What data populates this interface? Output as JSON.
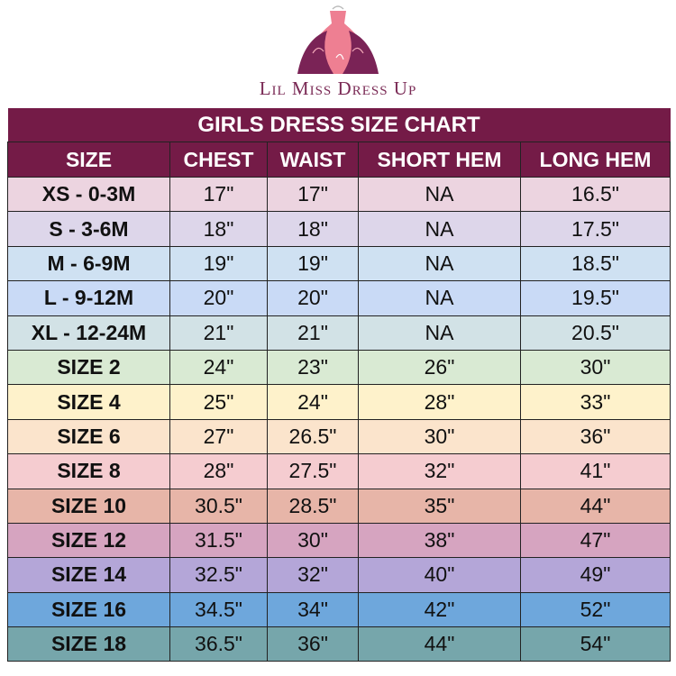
{
  "brand": {
    "name": "Lil Miss Dress Up",
    "colors": {
      "primary": "#741b47",
      "pink": "#ee7f92"
    }
  },
  "table": {
    "title": "GIRLS DRESS SIZE CHART",
    "columns": [
      "SIZE",
      "CHEST",
      "WAIST",
      "SHORT HEM",
      "LONG HEM"
    ],
    "rows": [
      {
        "cells": [
          "XS - 0-3M",
          "17\"",
          "17\"",
          "NA",
          "16.5\""
        ],
        "color": "#ecd4e0"
      },
      {
        "cells": [
          "S - 3-6M",
          "18\"",
          "18\"",
          "NA",
          "17.5\""
        ],
        "color": "#ddd6ea"
      },
      {
        "cells": [
          "M - 6-9M",
          "19\"",
          "19\"",
          "NA",
          "18.5\""
        ],
        "color": "#cfe1f2"
      },
      {
        "cells": [
          "L - 9-12M",
          "20\"",
          "20\"",
          "NA",
          "19.5\""
        ],
        "color": "#c9daf6"
      },
      {
        "cells": [
          "XL - 12-24M",
          "21\"",
          "21\"",
          "NA",
          "20.5\""
        ],
        "color": "#d2e2e6"
      },
      {
        "cells": [
          "SIZE 2",
          "24\"",
          "23\"",
          "26\"",
          "30\""
        ],
        "color": "#d9ead3"
      },
      {
        "cells": [
          "SIZE 4",
          "25\"",
          "24\"",
          "28\"",
          "33\""
        ],
        "color": "#fef2cb"
      },
      {
        "cells": [
          "SIZE 6",
          "27\"",
          "26.5\"",
          "30\"",
          "36\""
        ],
        "color": "#fbe4cc"
      },
      {
        "cells": [
          "SIZE 8",
          "28\"",
          "27.5\"",
          "32\"",
          "41\""
        ],
        "color": "#f5ccd0"
      },
      {
        "cells": [
          "SIZE 10",
          "30.5\"",
          "28.5\"",
          "35\"",
          "44\""
        ],
        "color": "#e7b5a8"
      },
      {
        "cells": [
          "SIZE 12",
          "31.5\"",
          "30\"",
          "38\"",
          "47\""
        ],
        "color": "#d6a4c0"
      },
      {
        "cells": [
          "SIZE 14",
          "32.5\"",
          "32\"",
          "40\"",
          "49\""
        ],
        "color": "#b4a6d8"
      },
      {
        "cells": [
          "SIZE 16",
          "34.5\"",
          "34\"",
          "42\"",
          "52\""
        ],
        "color": "#6ea7dc"
      },
      {
        "cells": [
          "SIZE 18",
          "36.5\"",
          "36\"",
          "44\"",
          "54\""
        ],
        "color": "#76a6ab"
      }
    ]
  }
}
